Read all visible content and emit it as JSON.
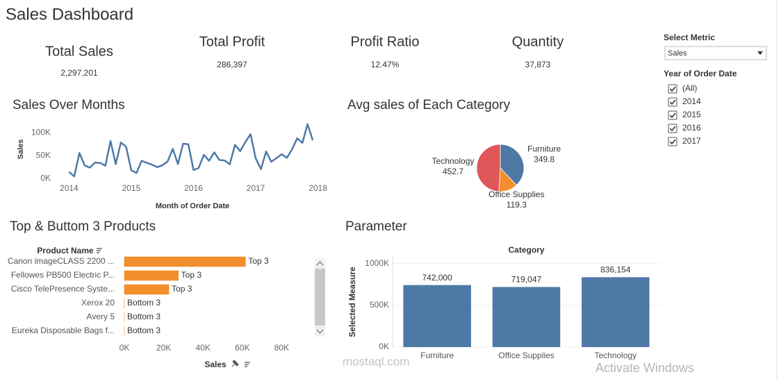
{
  "header": {
    "title": "Sales Dashboard"
  },
  "kpis": [
    {
      "label": "Total Sales",
      "value": "2,297,201"
    },
    {
      "label": "Total Profit",
      "value": "286,397"
    },
    {
      "label": "Profit Ratio",
      "value": "12.47%"
    },
    {
      "label": "Quantity",
      "value": "37,873"
    }
  ],
  "filters": {
    "metric": {
      "label": "Select Metric",
      "selected": "Sales"
    },
    "year": {
      "label": "Year of Order Date",
      "options": [
        "(All)",
        "2014",
        "2015",
        "2016",
        "2017"
      ],
      "checked": [
        true,
        true,
        true,
        true,
        true
      ]
    }
  },
  "chart_data": [
    {
      "type": "line",
      "title": "Sales Over Months",
      "x_label": "Month of Order Date",
      "y_label": "Sales",
      "color": "#4e79a7",
      "x": [
        2014,
        2014.083,
        2014.167,
        2014.25,
        2014.333,
        2014.417,
        2014.5,
        2014.583,
        2014.667,
        2014.75,
        2014.833,
        2014.917,
        2015,
        2015.083,
        2015.167,
        2015.25,
        2015.333,
        2015.417,
        2015.5,
        2015.583,
        2015.667,
        2015.75,
        2015.833,
        2015.917,
        2016,
        2016.083,
        2016.167,
        2016.25,
        2016.333,
        2016.417,
        2016.5,
        2016.583,
        2016.667,
        2016.75,
        2016.833,
        2016.917,
        2017,
        2017.083,
        2017.167,
        2017.25,
        2017.333,
        2017.417,
        2017.5,
        2017.583,
        2017.667,
        2017.75,
        2017.833,
        2017.917
      ],
      "values": [
        14237,
        4520,
        55691,
        28295,
        23648,
        34595,
        33946,
        27909,
        81777,
        31453,
        78629,
        69546,
        18174,
        11951,
        38726,
        34195,
        30131,
        24797,
        28765,
        36898,
        64596,
        31405,
        75972,
        74919,
        18542,
        22979,
        51716,
        38750,
        56988,
        40344,
        39262,
        31115,
        73410,
        59688,
        79412,
        96999,
        43971,
        20301,
        58872,
        36522,
        44261,
        52982,
        45264,
        63121,
        87867,
        77777,
        118448,
        83829
      ],
      "xlim": [
        2013.75,
        2018.15
      ],
      "xticks": [
        2014,
        2015,
        2016,
        2017,
        2018
      ],
      "ylim": [
        -12000,
        117000
      ],
      "yticks": [
        {
          "value": 0,
          "label": "0K"
        },
        {
          "value": 50000,
          "label": "50K"
        },
        {
          "value": 100000,
          "label": "100K"
        }
      ]
    },
    {
      "type": "pie",
      "title": "Avg sales of Each Category",
      "categories": [
        "Furniture",
        "Office Supplies",
        "Technology"
      ],
      "values": [
        349.8,
        119.3,
        452.7
      ],
      "colors": [
        "#4e79a7",
        "#f28e2b",
        "#e15759"
      ]
    },
    {
      "type": "hbar",
      "title": "Top & Buttom 3 Products",
      "y_label": "Product Name",
      "x_label": "Sales",
      "color": "#f28e2b",
      "categories": [
        "Canon imageCLASS 2200 ...",
        "Fellowes PB500 Electric P...",
        "Cisco TelePresence Syste...",
        "Xerox 20",
        "Avery 5",
        "Eureka Disposable Bags f..."
      ],
      "values": [
        61600,
        27453,
        22638,
        6.48,
        5.76,
        1.62
      ],
      "group_labels": [
        "Top 3",
        "Top 3",
        "Top 3",
        "Bottom 3",
        "Bottom 3",
        "Bottom 3"
      ],
      "xlim": [
        0,
        94000
      ],
      "xticks": [
        {
          "value": 0,
          "label": "0K"
        },
        {
          "value": 20000,
          "label": "20K"
        },
        {
          "value": 40000,
          "label": "40K"
        },
        {
          "value": 60000,
          "label": "60K"
        },
        {
          "value": 80000,
          "label": "80K"
        }
      ]
    },
    {
      "type": "bar",
      "title": "Parameter",
      "x_label": "Category",
      "y_label": "Selected Measure",
      "color": "#4e79a7",
      "categories": [
        "Furniture",
        "Office Supplies",
        "Technology"
      ],
      "values": [
        742000,
        719047,
        836154
      ],
      "value_labels": [
        "742,000",
        "719,047",
        "836,154"
      ],
      "ylim": [
        0,
        1080000
      ],
      "yticks": [
        {
          "value": 0,
          "label": "0K"
        },
        {
          "value": 500000,
          "label": "500K"
        },
        {
          "value": 1000000,
          "label": "1000K"
        }
      ],
      "grid": true
    }
  ],
  "watermarks": [
    "mostaql.com",
    "Activate Windows"
  ]
}
